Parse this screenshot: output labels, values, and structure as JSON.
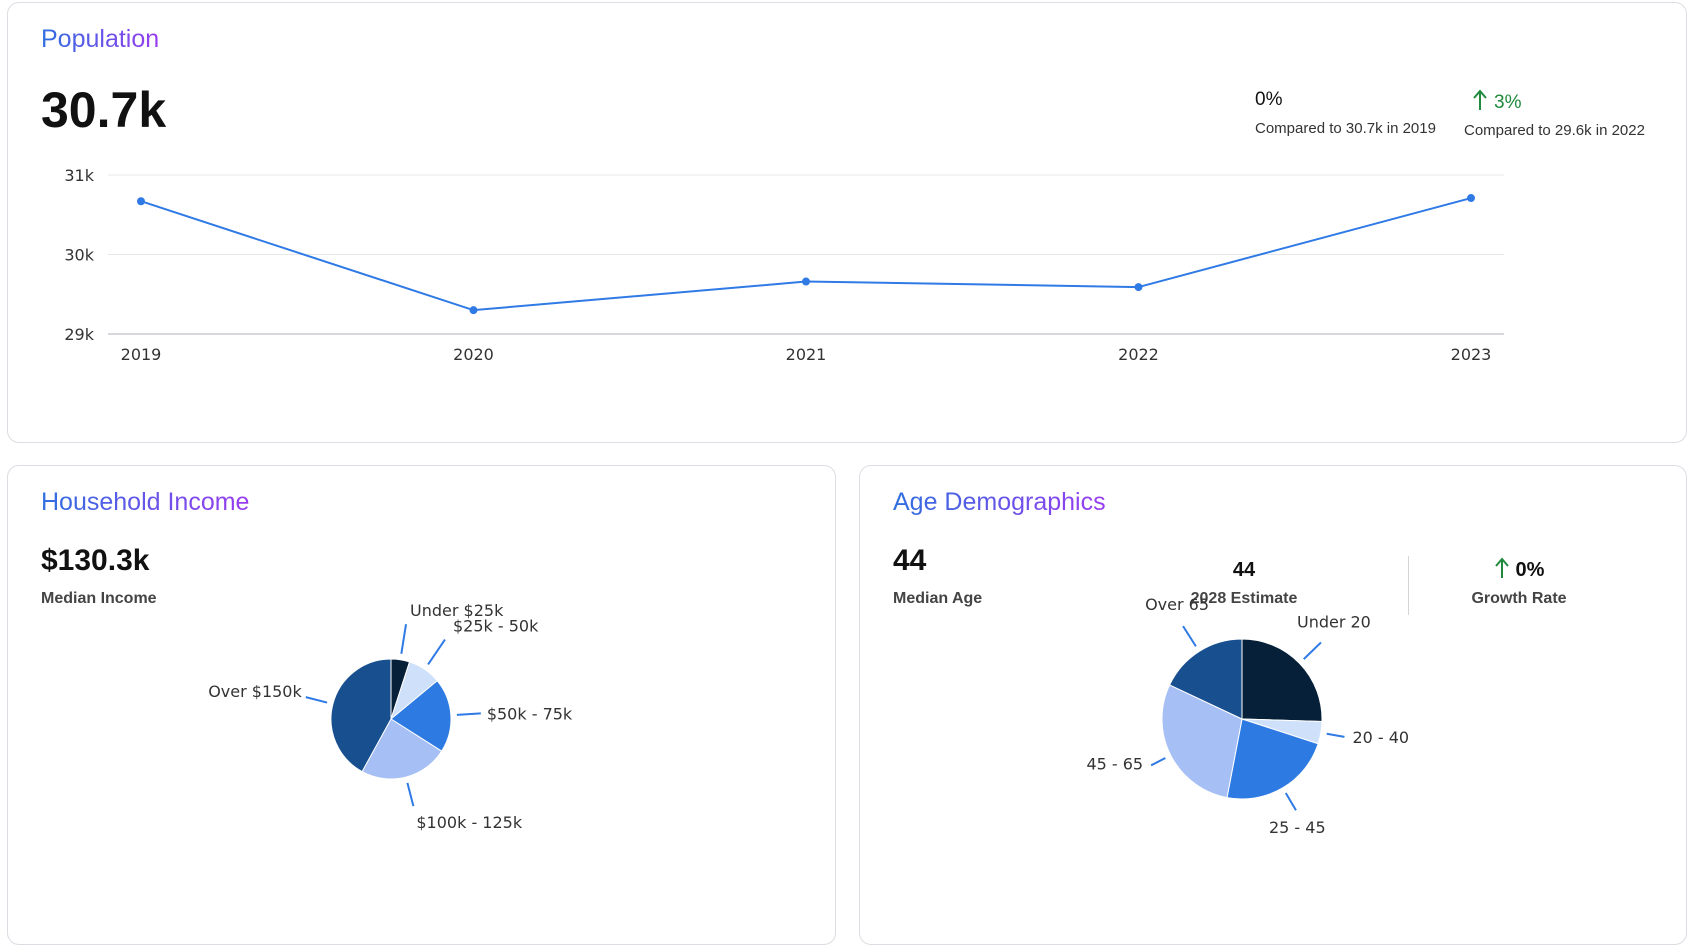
{
  "colors": {
    "accent": "#2f7ae5",
    "title_gradient": [
      "#2f6fe0",
      "#9a3cf0"
    ],
    "positive": "#1f8a3b",
    "pie_palette": [
      "#06203a",
      "#cfe0fb",
      "#2d7be2",
      "#a6bff5",
      "#174f8f"
    ]
  },
  "population": {
    "title": "Population",
    "value": "30.7k",
    "comparisons": [
      {
        "value": "0%",
        "direction": "none",
        "text": "Compared to 30.7k in 2019"
      },
      {
        "value": "3%",
        "direction": "up",
        "icon": "arrow-up-icon",
        "text": "Compared to 29.6k in 2022"
      }
    ]
  },
  "income": {
    "title": "Household Income",
    "value": "$130.3k",
    "label": "Median Income"
  },
  "age": {
    "title": "Age Demographics",
    "value": "44",
    "label": "Median Age",
    "estimate_value": "44",
    "estimate_label": "2028 Estimate",
    "growth_value": "0%",
    "growth_icon": "arrow-up-icon",
    "growth_label": "Growth Rate"
  },
  "chart_data": [
    {
      "type": "line",
      "x": [
        "2019",
        "2020",
        "2021",
        "2022",
        "2023"
      ],
      "series": [
        {
          "values": [
            30670,
            29300,
            29660,
            29590,
            30710
          ]
        }
      ],
      "yticks": [
        "29k",
        "30k",
        "31k"
      ],
      "ytick_values": [
        29000,
        30000,
        31000
      ],
      "ylim": [
        29000,
        31000
      ],
      "grid": true,
      "color": "#2f7ae5"
    },
    {
      "type": "pie",
      "labels": [
        "Under $25k",
        "$25k - 50k",
        "$50k - 75k",
        "$100k - 125k",
        "Over $150k"
      ],
      "values": [
        5,
        9,
        20,
        24,
        42
      ],
      "colors": [
        "#06203a",
        "#cfe0fb",
        "#2d7be2",
        "#a6bff5",
        "#174f8f"
      ]
    },
    {
      "type": "pie",
      "labels": [
        "Under 20",
        "20 - 40",
        "25 - 45",
        "45 - 65",
        "Over 65"
      ],
      "values": [
        25.5,
        4.5,
        23,
        29,
        18
      ],
      "colors": [
        "#06203a",
        "#cfe0fb",
        "#2d7be2",
        "#a6bff5",
        "#174f8f"
      ]
    }
  ]
}
